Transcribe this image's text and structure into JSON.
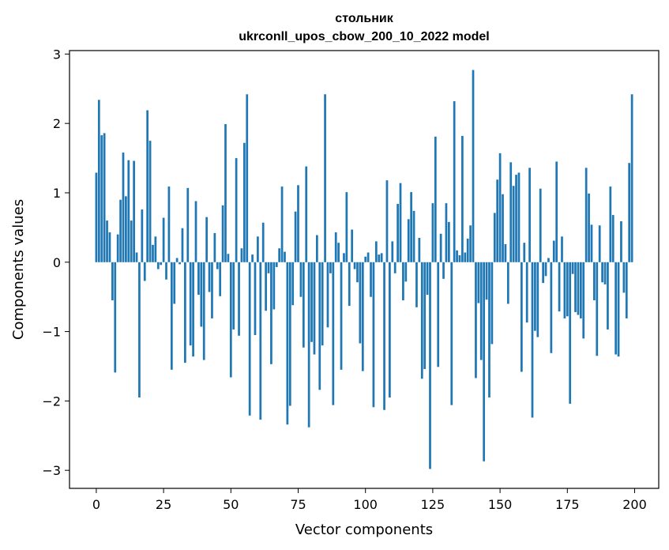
{
  "chart_data": {
    "type": "bar",
    "title": "стольник",
    "subtitle": "ukrconll_upos_cbow_200_10_2022 model",
    "xlabel": "Vector components",
    "ylabel": "Components values",
    "xlim": [
      -9.95,
      208.95
    ],
    "ylim": [
      -3.26,
      3.05
    ],
    "xticks": [
      0,
      25,
      50,
      75,
      100,
      125,
      150,
      175,
      200
    ],
    "yticks": [
      -3,
      -2,
      -1,
      0,
      1,
      2,
      3
    ],
    "ytick_labels": [
      "−3",
      "−2",
      "−1",
      "0",
      "1",
      "2",
      "3"
    ],
    "bar_color": "#1f77b4",
    "grid": false,
    "x": [
      0,
      1,
      2,
      3,
      4,
      5,
      6,
      7,
      8,
      9,
      10,
      11,
      12,
      13,
      14,
      15,
      16,
      17,
      18,
      19,
      20,
      21,
      22,
      23,
      24,
      25,
      26,
      27,
      28,
      29,
      30,
      31,
      32,
      33,
      34,
      35,
      36,
      37,
      38,
      39,
      40,
      41,
      42,
      43,
      44,
      45,
      46,
      47,
      48,
      49,
      50,
      51,
      52,
      53,
      54,
      55,
      56,
      57,
      58,
      59,
      60,
      61,
      62,
      63,
      64,
      65,
      66,
      67,
      68,
      69,
      70,
      71,
      72,
      73,
      74,
      75,
      76,
      77,
      78,
      79,
      80,
      81,
      82,
      83,
      84,
      85,
      86,
      87,
      88,
      89,
      90,
      91,
      92,
      93,
      94,
      95,
      96,
      97,
      98,
      99,
      100,
      101,
      102,
      103,
      104,
      105,
      106,
      107,
      108,
      109,
      110,
      111,
      112,
      113,
      114,
      115,
      116,
      117,
      118,
      119,
      120,
      121,
      122,
      123,
      124,
      125,
      126,
      127,
      128,
      129,
      130,
      131,
      132,
      133,
      134,
      135,
      136,
      137,
      138,
      139,
      140,
      141,
      142,
      143,
      144,
      145,
      146,
      147,
      148,
      149,
      150,
      151,
      152,
      153,
      154,
      155,
      156,
      157,
      158,
      159,
      160,
      161,
      162,
      163,
      164,
      165,
      166,
      167,
      168,
      169,
      170,
      171,
      172,
      173,
      174,
      175,
      176,
      177,
      178,
      179,
      180,
      181,
      182,
      183,
      184,
      185,
      186,
      187,
      188,
      189,
      190,
      191,
      192,
      193,
      194,
      195,
      196,
      197,
      198,
      199
    ],
    "values": [
      1.29,
      2.34,
      1.83,
      1.86,
      0.6,
      0.43,
      -0.55,
      -1.59,
      0.4,
      0.9,
      1.58,
      0.95,
      1.47,
      0.6,
      1.46,
      0.14,
      -1.95,
      0.76,
      -0.27,
      2.19,
      1.75,
      0.25,
      0.37,
      -0.1,
      -0.04,
      0.64,
      -0.25,
      1.09,
      -1.55,
      -0.6,
      0.06,
      -0.03,
      0.49,
      -1.45,
      1.07,
      -1.2,
      -1.36,
      0.88,
      -0.47,
      -0.93,
      -1.41,
      0.65,
      -0.43,
      -0.81,
      0.42,
      -0.1,
      -0.49,
      0.82,
      1.99,
      0.12,
      -1.66,
      -0.97,
      1.5,
      -1.06,
      0.2,
      1.72,
      2.42,
      -2.21,
      0.11,
      -1.05,
      0.37,
      -2.27,
      0.57,
      -0.7,
      -0.16,
      -1.47,
      -0.68,
      -0.07,
      0.2,
      1.09,
      0.15,
      -2.34,
      -2.07,
      -0.62,
      0.73,
      1.11,
      -0.5,
      -1.23,
      1.38,
      -2.38,
      -1.15,
      -1.33,
      0.39,
      -1.84,
      -1.2,
      2.42,
      -0.94,
      -0.16,
      -2.06,
      0.43,
      0.28,
      -1.55,
      0.13,
      1.01,
      -0.63,
      0.47,
      -0.1,
      -0.29,
      -1.17,
      -1.57,
      0.08,
      0.14,
      -0.5,
      -2.09,
      0.3,
      0.11,
      0.13,
      -2.13,
      1.18,
      -1.95,
      0.3,
      -0.16,
      0.84,
      1.14,
      -0.55,
      -0.28,
      0.62,
      1.01,
      0.74,
      -0.65,
      0.35,
      -1.68,
      -1.54,
      -0.47,
      -2.98,
      0.85,
      1.81,
      -1.51,
      0.41,
      -0.24,
      0.85,
      0.58,
      -2.06,
      2.32,
      0.17,
      0.1,
      1.82,
      0.14,
      0.34,
      0.53,
      2.77,
      -1.67,
      -0.59,
      -1.41,
      -2.87,
      -0.54,
      -1.95,
      -1.18,
      0.71,
      1.19,
      1.57,
      0.98,
      0.26,
      -0.6,
      1.44,
      1.1,
      1.26,
      1.29,
      -1.58,
      0.28,
      -0.87,
      1.36,
      -2.24,
      -0.99,
      -1.08,
      1.06,
      -0.3,
      -0.2,
      0.06,
      -1.31,
      0.31,
      1.45,
      -0.71,
      0.37,
      -0.81,
      -0.78,
      -2.04,
      -0.17,
      -0.72,
      -0.76,
      -0.81,
      -1.1,
      1.36,
      0.99,
      0.54,
      -0.55,
      -1.35,
      0.53,
      -0.29,
      -0.32,
      -0.97,
      1.09,
      0.68,
      -1.33,
      -1.36,
      0.59,
      -0.44,
      -0.81,
      1.43,
      2.42
    ]
  }
}
